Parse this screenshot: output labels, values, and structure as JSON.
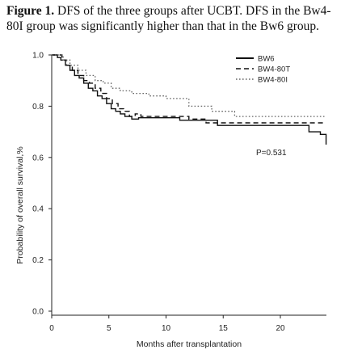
{
  "caption": {
    "label": "Figure 1.",
    "text": " DFS of the three groups after UCBT. DFS in the Bw4-80I group was significantly higher than that in the Bw6 group."
  },
  "chart_data": {
    "type": "line",
    "xlabel": "Months after transplantation",
    "ylabel": "Probability of overall survival,%",
    "xlim": [
      0,
      24
    ],
    "ylim": [
      0,
      1
    ],
    "xticks": [
      "0",
      "5",
      "10",
      "15",
      "20"
    ],
    "yticks": [
      "0.0",
      "0.2",
      "0.4",
      "0.6",
      "0.8",
      "1.0"
    ],
    "annotation": "P=0.531",
    "legend_position": "top-right",
    "grid": false,
    "series": [
      {
        "name": "BW6",
        "style": "solid",
        "color": "#111111",
        "x": [
          0,
          0.5,
          0.8,
          1.2,
          1.6,
          2.0,
          2.4,
          2.8,
          3.2,
          3.6,
          4.0,
          4.4,
          4.8,
          5.2,
          5.6,
          6.0,
          6.4,
          7.0,
          7.6,
          10.5,
          11.2,
          12.5,
          14.5,
          21.5,
          22.5,
          23.5,
          24
        ],
        "y": [
          1.0,
          0.99,
          0.98,
          0.96,
          0.94,
          0.92,
          0.91,
          0.89,
          0.87,
          0.86,
          0.84,
          0.83,
          0.81,
          0.79,
          0.78,
          0.77,
          0.76,
          0.75,
          0.755,
          0.755,
          0.745,
          0.745,
          0.725,
          0.725,
          0.7,
          0.69,
          0.65
        ]
      },
      {
        "name": "BW4-80T",
        "style": "dashed",
        "color": "#111111",
        "x": [
          0,
          0.9,
          1.3,
          1.8,
          2.3,
          2.8,
          3.3,
          3.8,
          4.3,
          4.8,
          5.3,
          5.8,
          6.3,
          6.8,
          7.3,
          7.8,
          12.0,
          13.5,
          24
        ],
        "y": [
          1.0,
          0.98,
          0.96,
          0.94,
          0.92,
          0.9,
          0.89,
          0.87,
          0.85,
          0.83,
          0.81,
          0.79,
          0.78,
          0.76,
          0.77,
          0.76,
          0.75,
          0.735,
          0.735
        ]
      },
      {
        "name": "BW4-80I",
        "style": "dotted",
        "color": "#666666",
        "x": [
          0,
          1.0,
          1.6,
          2.3,
          3.0,
          3.8,
          4.5,
          5.2,
          6.0,
          7.0,
          8.5,
          10.0,
          12.0,
          14.0,
          16.0,
          24
        ],
        "y": [
          1.0,
          0.98,
          0.96,
          0.94,
          0.92,
          0.9,
          0.89,
          0.87,
          0.86,
          0.85,
          0.84,
          0.83,
          0.8,
          0.78,
          0.76,
          0.76
        ]
      }
    ]
  }
}
